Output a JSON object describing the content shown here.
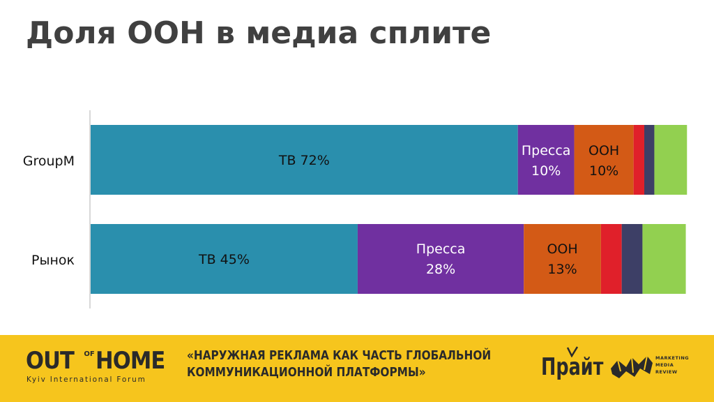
{
  "title": "Доля ООН в медиа сплите",
  "chart_data": {
    "type": "bar",
    "orientation": "horizontal",
    "stacked": true,
    "categories": [
      "GroupM",
      "Рынок"
    ],
    "xlim": [
      0,
      100
    ],
    "grid": false,
    "legend": "none",
    "series": [
      {
        "color": "#2a8fad",
        "values": [
          72,
          45
        ],
        "labels": [
          "ТВ 72%",
          "ТВ 45%"
        ],
        "label_color": "#111111"
      },
      {
        "color": "#7030a0",
        "values": [
          9.5,
          28
        ],
        "labels": [
          "Пресса|10%",
          "Пресса|28%"
        ],
        "label_color": "#ffffff"
      },
      {
        "color": "#d35a16",
        "values": [
          10,
          13
        ],
        "labels": [
          "ООН|10%",
          "ООН|13%"
        ],
        "label_color": "#111111"
      },
      {
        "color": "#e0202a",
        "values": [
          1.8,
          3.5
        ],
        "labels": [
          "",
          ""
        ],
        "label_color": "#111111"
      },
      {
        "color": "#3d3f66",
        "values": [
          1.7,
          3.5
        ],
        "labels": [
          "",
          ""
        ],
        "label_color": "#111111"
      },
      {
        "color": "#92d050",
        "values": [
          5.5,
          7.3
        ],
        "labels": [
          "",
          ""
        ],
        "label_color": "#111111"
      }
    ]
  },
  "footer": {
    "logo_out": "OUT",
    "logo_of": "OF",
    "logo_home": "HOME",
    "logo_sub": "Kyiv International Forum",
    "slogan_line1": "«НАРУЖНАЯ РЕКЛАМА КАК ЧАСТЬ ГЛОБАЛЬНОЙ",
    "slogan_line2": "КОММУНИКАЦИОННОЙ ПЛАТФОРМЫ»",
    "prime_logo": "Прайт",
    "mmr_line1": "MARKETING",
    "mmr_line2": "MEDIA",
    "mmr_line3": "REVIEW",
    "brand_color": "#f6c51d"
  }
}
